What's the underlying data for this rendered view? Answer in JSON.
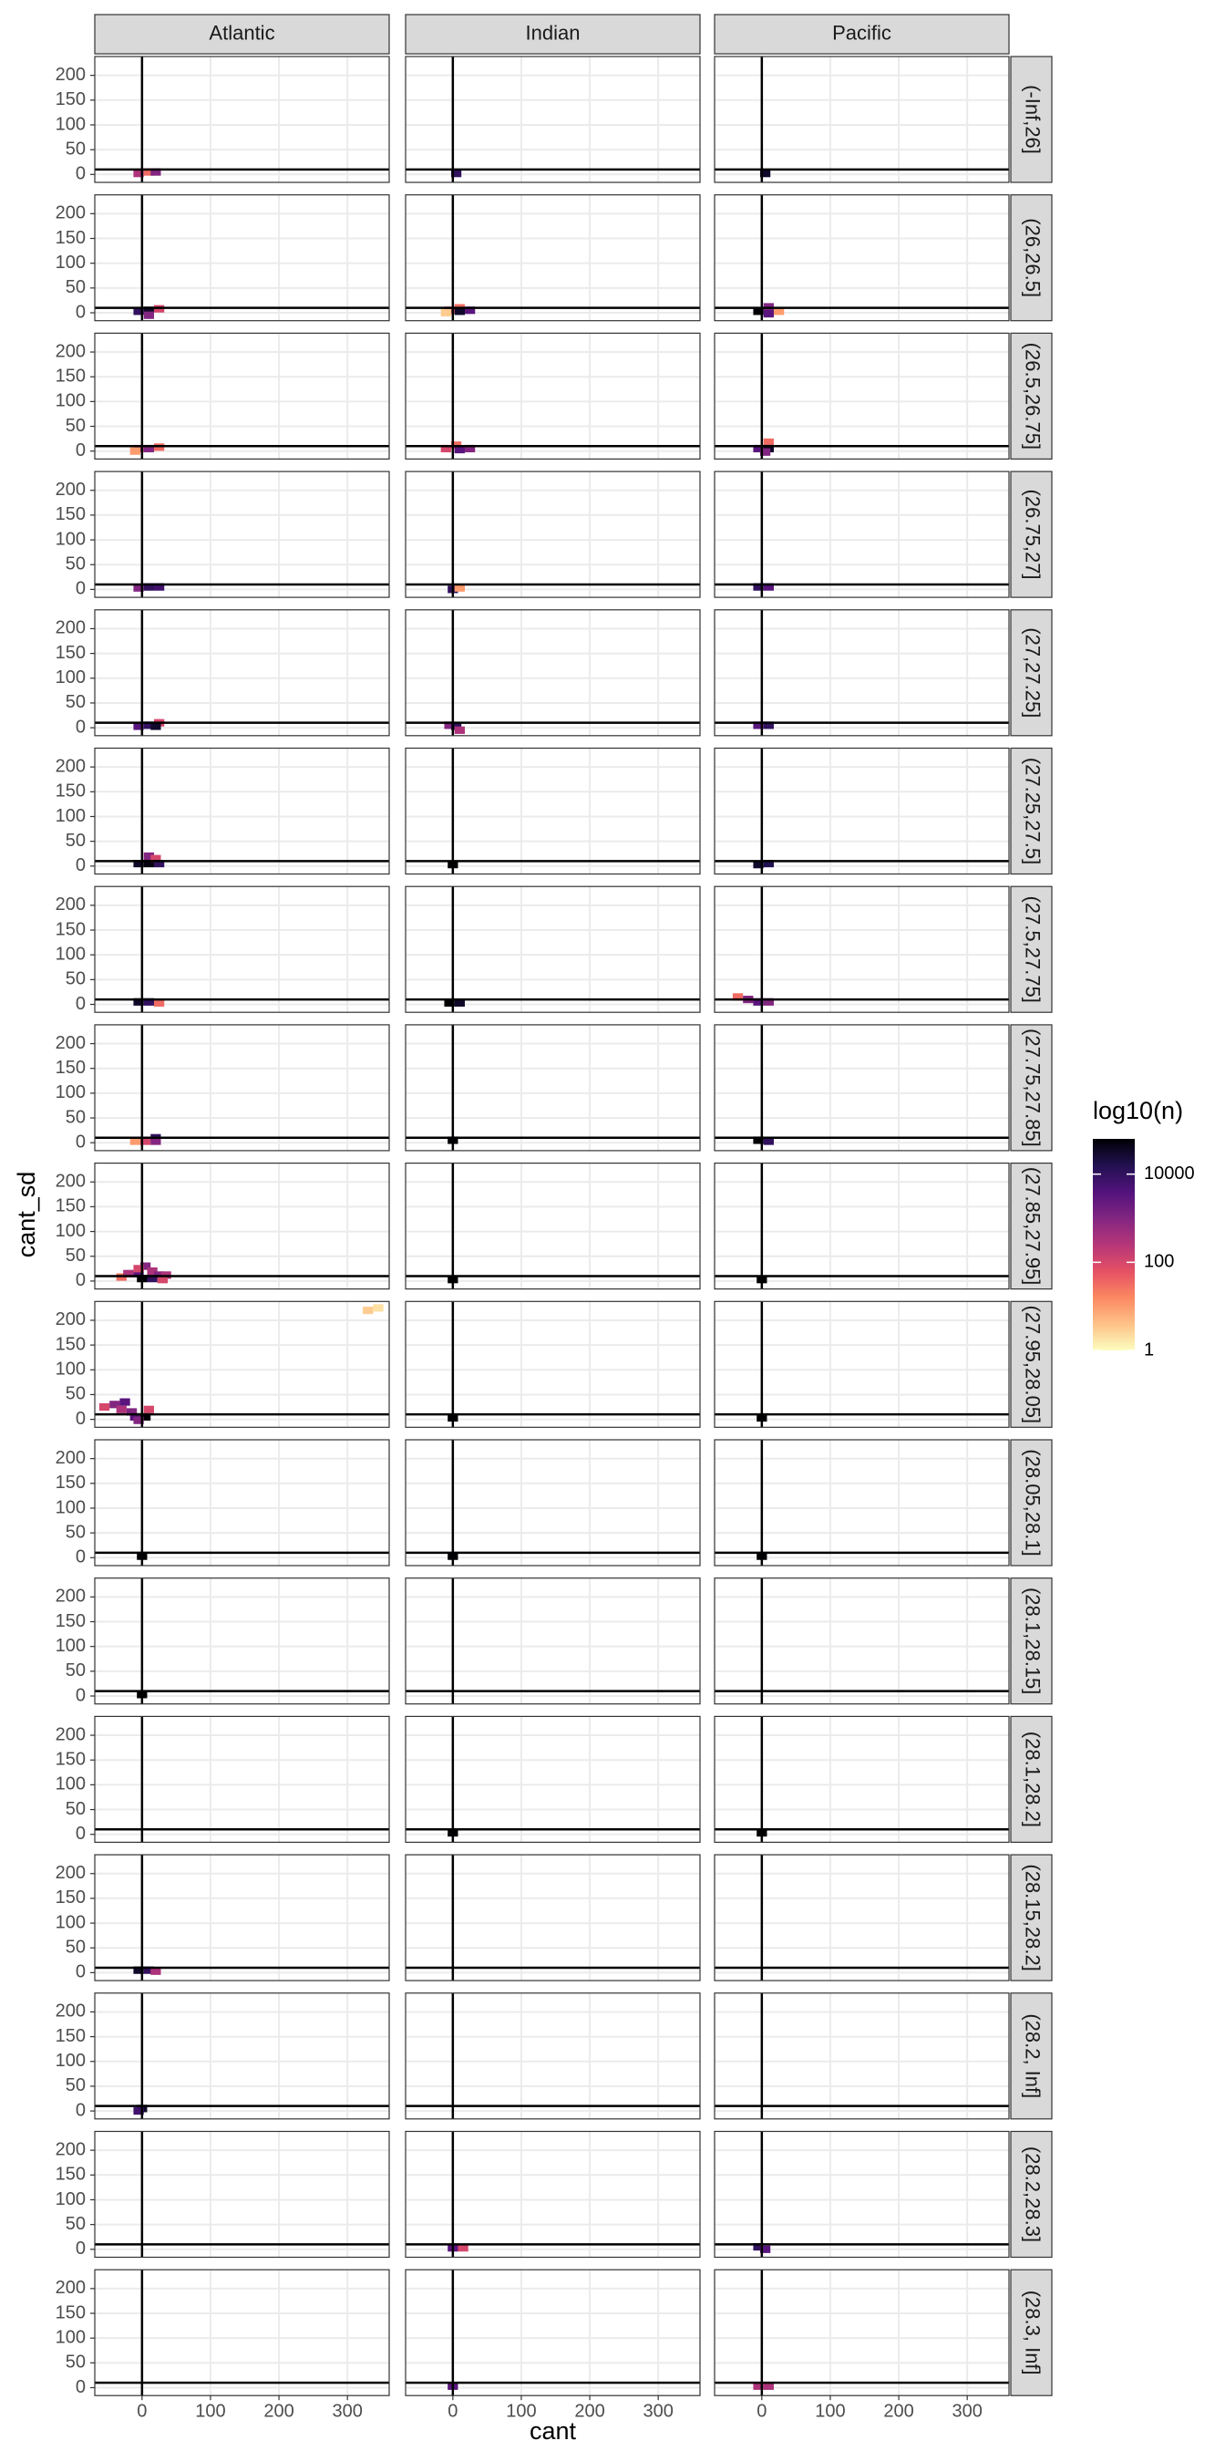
{
  "chart_data": {
    "type": "bin2d",
    "xlabel": "cant",
    "ylabel": "cant_sd",
    "legend_title": "log10(n)",
    "facet_cols": [
      "Atlantic",
      "Indian",
      "Pacific"
    ],
    "facet_rows": [
      "(-Inf,26]",
      "(26,26.5]",
      "(26.5,26.75]",
      "(26.75,27]",
      "(27,27.25]",
      "(27.25,27.5]",
      "(27.5,27.75]",
      "(27.75,27.85]",
      "(27.85,27.95]",
      "(27.95,28.05]",
      "(28.05,28.1]",
      "(28.1,28.15]",
      "(28.1,28.2]",
      "(28.15,28.2]",
      "(28.2, Inf]",
      "(28.2,28.3]",
      "(28.3, Inf]"
    ],
    "xlim": [
      -69,
      361
    ],
    "xticks": [
      0,
      100,
      200,
      300
    ],
    "ylim": [
      -16,
      238
    ],
    "yticks": [
      0,
      50,
      100,
      150,
      200
    ],
    "grid": true,
    "vline": 0,
    "hline": 10,
    "binwidth": [
      15,
      15
    ],
    "colors": [
      "#fcfdbf",
      "#fec287",
      "#fb8861",
      "#e55064",
      "#b63679",
      "#822681",
      "#51127c",
      "#221150",
      "#000004"
    ],
    "legend_lim": [
      0,
      4.8
    ],
    "legend_ticks": [
      {
        "value": 0,
        "label": "1"
      },
      {
        "value": 2,
        "label": "100"
      },
      {
        "value": 4,
        "label": "10000"
      }
    ],
    "panels": [
      [
        [
          [
            -5,
            2,
            2.5
          ],
          [
            10,
            5,
            1.5
          ],
          [
            20,
            5,
            3
          ]
        ],
        [
          [
            5,
            2,
            4
          ]
        ],
        [
          [
            5,
            2,
            4.5
          ]
        ]
      ],
      [
        [
          [
            -5,
            3,
            4
          ],
          [
            10,
            5,
            4.5
          ],
          [
            25,
            8,
            2
          ],
          [
            10,
            -5,
            3
          ]
        ],
        [
          [
            -5,
            5,
            2
          ],
          [
            10,
            10,
            1.5
          ],
          [
            10,
            3,
            4.5
          ],
          [
            25,
            5,
            3.5
          ],
          [
            -10,
            0,
            0.5
          ]
        ],
        [
          [
            -5,
            3,
            4.8
          ],
          [
            10,
            12,
            3
          ],
          [
            10,
            -2,
            3.5
          ],
          [
            25,
            3,
            1
          ]
        ]
      ],
      [
        [
          [
            -5,
            5,
            2.5
          ],
          [
            10,
            5,
            3
          ],
          [
            25,
            8,
            1.5
          ],
          [
            -10,
            0,
            1
          ]
        ],
        [
          [
            -10,
            5,
            2
          ],
          [
            5,
            12,
            1.5
          ],
          [
            10,
            3,
            3.5
          ],
          [
            25,
            5,
            3
          ]
        ],
        [
          [
            -5,
            5,
            3.5
          ],
          [
            10,
            18,
            1.5
          ],
          [
            10,
            5,
            4.5
          ],
          [
            5,
            -2,
            3
          ]
        ]
      ],
      [
        [
          [
            -5,
            3,
            3
          ],
          [
            10,
            5,
            4
          ],
          [
            25,
            5,
            3.8
          ]
        ],
        [
          [
            0,
            0,
            4
          ],
          [
            10,
            3,
            1
          ]
        ],
        [
          [
            -5,
            5,
            4
          ],
          [
            10,
            5,
            3.5
          ]
        ]
      ],
      [
        [
          [
            -5,
            3,
            3.5
          ],
          [
            10,
            5,
            4
          ],
          [
            25,
            10,
            2
          ],
          [
            20,
            3,
            4.5
          ]
        ],
        [
          [
            -5,
            5,
            3
          ],
          [
            5,
            3,
            4
          ],
          [
            10,
            -5,
            2.5
          ]
        ],
        [
          [
            -5,
            5,
            3.5
          ],
          [
            10,
            5,
            4
          ]
        ]
      ],
      [
        [
          [
            -5,
            5,
            4.5
          ],
          [
            10,
            5,
            4.7
          ],
          [
            10,
            20,
            3
          ],
          [
            20,
            15,
            2
          ],
          [
            25,
            5,
            4
          ]
        ],
        [
          [
            0,
            3,
            4.8
          ]
        ],
        [
          [
            -5,
            3,
            4.5
          ],
          [
            10,
            5,
            4.2
          ]
        ]
      ],
      [
        [
          [
            -5,
            5,
            4.5
          ],
          [
            10,
            5,
            4
          ],
          [
            25,
            3,
            1.5
          ]
        ],
        [
          [
            -5,
            3,
            4.8
          ],
          [
            10,
            3,
            4.5
          ]
        ],
        [
          [
            -35,
            15,
            1.5
          ],
          [
            -20,
            10,
            3
          ],
          [
            -5,
            5,
            3.5
          ],
          [
            10,
            5,
            3
          ]
        ]
      ],
      [
        [
          [
            -10,
            3,
            1
          ],
          [
            5,
            3,
            2
          ],
          [
            20,
            10,
            4
          ],
          [
            20,
            3,
            3
          ]
        ],
        [
          [
            0,
            5,
            4.8
          ]
        ],
        [
          [
            -5,
            5,
            4.8
          ],
          [
            10,
            3,
            4
          ]
        ]
      ],
      [
        [
          [
            -30,
            8,
            1.5
          ],
          [
            -20,
            15,
            2.5
          ],
          [
            -5,
            15,
            3.5
          ],
          [
            5,
            30,
            3
          ],
          [
            15,
            20,
            2.5
          ],
          [
            25,
            12,
            3
          ],
          [
            35,
            12,
            2.5
          ],
          [
            0,
            5,
            4.8
          ],
          [
            15,
            5,
            4
          ],
          [
            30,
            3,
            2
          ],
          [
            -5,
            25,
            2
          ]
        ],
        [
          [
            0,
            3,
            4.8
          ]
        ],
        [
          [
            0,
            3,
            4.8
          ]
        ]
      ],
      [
        [
          [
            330,
            220,
            0.5
          ],
          [
            345,
            225,
            0.3
          ],
          [
            -55,
            25,
            2
          ],
          [
            -40,
            30,
            3
          ],
          [
            -25,
            35,
            3.5
          ],
          [
            -30,
            20,
            2.5
          ],
          [
            -15,
            15,
            3
          ],
          [
            -10,
            5,
            3.5
          ],
          [
            5,
            5,
            4.8
          ],
          [
            -5,
            -2,
            3
          ],
          [
            10,
            20,
            2
          ]
        ],
        [
          [
            0,
            3,
            4.8
          ]
        ],
        [
          [
            0,
            3,
            4.8
          ]
        ]
      ],
      [
        [
          [
            0,
            3,
            4.8
          ]
        ],
        [
          [
            0,
            3,
            4.8
          ]
        ],
        [
          [
            0,
            3,
            4.8
          ]
        ]
      ],
      [
        [
          [
            0,
            3,
            4.8
          ]
        ],
        [],
        []
      ],
      [
        [],
        [
          [
            0,
            3,
            4.8
          ]
        ],
        [
          [
            0,
            3,
            4.8
          ]
        ]
      ],
      [
        [
          [
            -5,
            5,
            4.5
          ],
          [
            10,
            5,
            4
          ],
          [
            20,
            3,
            2.5
          ]
        ],
        [],
        []
      ],
      [
        [
          [
            0,
            5,
            4.5
          ],
          [
            -5,
            0,
            3.8
          ]
        ],
        [],
        []
      ],
      [
        [],
        [
          [
            0,
            3,
            3.5
          ],
          [
            15,
            3,
            2
          ]
        ],
        [
          [
            -5,
            5,
            4
          ],
          [
            5,
            0,
            3.5
          ]
        ]
      ],
      [
        [],
        [
          [
            0,
            3,
            3.5
          ]
        ],
        [
          [
            -5,
            3,
            2.5
          ],
          [
            10,
            3,
            2.5
          ]
        ]
      ]
    ]
  }
}
